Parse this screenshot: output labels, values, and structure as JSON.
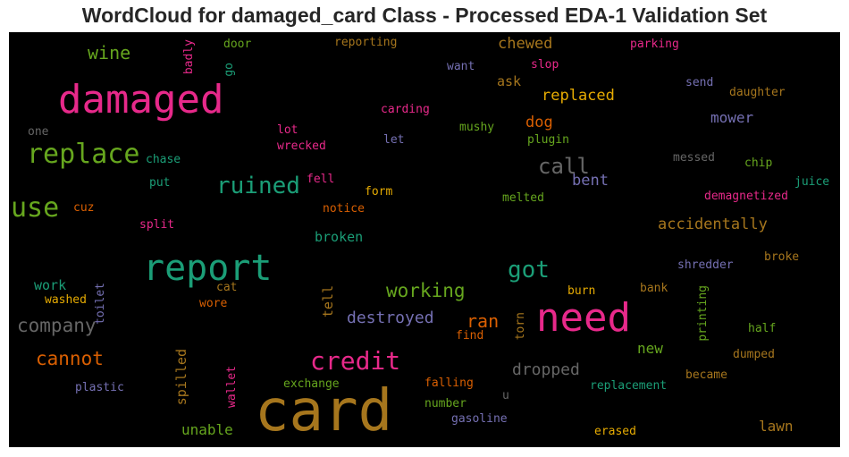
{
  "chart_data": {
    "type": "wordcloud",
    "title": "WordCloud for damaged_card Class - Processed EDA-1 Validation Set",
    "background": "#000000",
    "palette": "Dark2",
    "words": [
      {
        "text": "card",
        "size": 64,
        "color": "#a6761d",
        "rotated": false
      },
      {
        "text": "damaged",
        "size": 44,
        "color": "#e7298a",
        "rotated": false
      },
      {
        "text": "need",
        "size": 44,
        "color": "#e7298a",
        "rotated": false
      },
      {
        "text": "report",
        "size": 40,
        "color": "#1b9e77",
        "rotated": false
      },
      {
        "text": "replace",
        "size": 30,
        "color": "#66a61e",
        "rotated": false
      },
      {
        "text": "use",
        "size": 30,
        "color": "#66a61e",
        "rotated": false
      },
      {
        "text": "credit",
        "size": 28,
        "color": "#e7298a",
        "rotated": false
      },
      {
        "text": "ruined",
        "size": 26,
        "color": "#1b9e77",
        "rotated": false
      },
      {
        "text": "got",
        "size": 26,
        "color": "#1b9e77",
        "rotated": false
      },
      {
        "text": "call",
        "size": 24,
        "color": "#666666",
        "rotated": false
      },
      {
        "text": "company",
        "size": 21,
        "color": "#666666",
        "rotated": false
      },
      {
        "text": "cannot",
        "size": 21,
        "color": "#d95f02",
        "rotated": false
      },
      {
        "text": "working",
        "size": 21,
        "color": "#66a61e",
        "rotated": false
      },
      {
        "text": "wine",
        "size": 20,
        "color": "#66a61e",
        "rotated": false
      },
      {
        "text": "ran",
        "size": 20,
        "color": "#d95f02",
        "rotated": false
      },
      {
        "text": "destroyed",
        "size": 18,
        "color": "#7570b3",
        "rotated": false
      },
      {
        "text": "dropped",
        "size": 18,
        "color": "#666666",
        "rotated": false
      },
      {
        "text": "replaced",
        "size": 17,
        "color": "#e6ab02",
        "rotated": false
      },
      {
        "text": "accidentally",
        "size": 17,
        "color": "#a6761d",
        "rotated": false
      },
      {
        "text": "chewed",
        "size": 17,
        "color": "#a6761d",
        "rotated": false
      },
      {
        "text": "dog",
        "size": 17,
        "color": "#d95f02",
        "rotated": false
      },
      {
        "text": "bent",
        "size": 17,
        "color": "#7570b3",
        "rotated": false
      },
      {
        "text": "mower",
        "size": 16,
        "color": "#7570b3",
        "rotated": false
      },
      {
        "text": "lawn",
        "size": 16,
        "color": "#a6761d",
        "rotated": false
      },
      {
        "text": "new",
        "size": 16,
        "color": "#66a61e",
        "rotated": false
      },
      {
        "text": "unable",
        "size": 16,
        "color": "#66a61e",
        "rotated": false
      },
      {
        "text": "broken",
        "size": 15,
        "color": "#1b9e77",
        "rotated": false
      },
      {
        "text": "work",
        "size": 15,
        "color": "#1b9e77",
        "rotated": false
      },
      {
        "text": "ask",
        "size": 15,
        "color": "#a6761d",
        "rotated": false
      },
      {
        "text": "spilled",
        "size": 15,
        "color": "#a6761d",
        "rotated": true
      },
      {
        "text": "tell",
        "size": 15,
        "color": "#a6761d",
        "rotated": true
      },
      {
        "text": "shredder",
        "size": 13,
        "color": "#7570b3",
        "rotated": false
      },
      {
        "text": "replacement",
        "size": 13,
        "color": "#1b9e77",
        "rotated": false
      },
      {
        "text": "gasoline",
        "size": 13,
        "color": "#7570b3",
        "rotated": false
      },
      {
        "text": "exchange",
        "size": 13,
        "color": "#66a61e",
        "rotated": false
      },
      {
        "text": "plastic",
        "size": 13,
        "color": "#7570b3",
        "rotated": false
      },
      {
        "text": "demagnetized",
        "size": 13,
        "color": "#e7298a",
        "rotated": false
      },
      {
        "text": "juice",
        "size": 13,
        "color": "#1b9e77",
        "rotated": false
      },
      {
        "text": "messed",
        "size": 13,
        "color": "#666666",
        "rotated": false
      },
      {
        "text": "chip",
        "size": 13,
        "color": "#66a61e",
        "rotated": false
      },
      {
        "text": "daughter",
        "size": 13,
        "color": "#a6761d",
        "rotated": false
      },
      {
        "text": "send",
        "size": 13,
        "color": "#7570b3",
        "rotated": false
      },
      {
        "text": "parking",
        "size": 13,
        "color": "#e7298a",
        "rotated": false
      },
      {
        "text": "slop",
        "size": 13,
        "color": "#e7298a",
        "rotated": false
      },
      {
        "text": "want",
        "size": 13,
        "color": "#7570b3",
        "rotated": false
      },
      {
        "text": "reporting",
        "size": 13,
        "color": "#a6761d",
        "rotated": false
      },
      {
        "text": "door",
        "size": 13,
        "color": "#66a61e",
        "rotated": false
      },
      {
        "text": "carding",
        "size": 13,
        "color": "#e7298a",
        "rotated": false
      },
      {
        "text": "mushy",
        "size": 13,
        "color": "#66a61e",
        "rotated": false
      },
      {
        "text": "plugin",
        "size": 13,
        "color": "#66a61e",
        "rotated": false
      },
      {
        "text": "lot",
        "size": 13,
        "color": "#e7298a",
        "rotated": false
      },
      {
        "text": "wrecked",
        "size": 13,
        "color": "#e7298a",
        "rotated": false
      },
      {
        "text": "let",
        "size": 13,
        "color": "#7570b3",
        "rotated": false
      },
      {
        "text": "one",
        "size": 13,
        "color": "#666666",
        "rotated": false
      },
      {
        "text": "chase",
        "size": 13,
        "color": "#1b9e77",
        "rotated": false
      },
      {
        "text": "put",
        "size": 13,
        "color": "#1b9e77",
        "rotated": false
      },
      {
        "text": "fell",
        "size": 13,
        "color": "#e7298a",
        "rotated": false
      },
      {
        "text": "form",
        "size": 13,
        "color": "#e6ab02",
        "rotated": false
      },
      {
        "text": "notice",
        "size": 13,
        "color": "#d95f02",
        "rotated": false
      },
      {
        "text": "melted",
        "size": 13,
        "color": "#66a61e",
        "rotated": false
      },
      {
        "text": "cuz",
        "size": 13,
        "color": "#d95f02",
        "rotated": false
      },
      {
        "text": "split",
        "size": 13,
        "color": "#e7298a",
        "rotated": false
      },
      {
        "text": "broke",
        "size": 13,
        "color": "#a6761d",
        "rotated": false
      },
      {
        "text": "bank",
        "size": 13,
        "color": "#a6761d",
        "rotated": false
      },
      {
        "text": "burn",
        "size": 13,
        "color": "#e6ab02",
        "rotated": false
      },
      {
        "text": "cat",
        "size": 13,
        "color": "#a6761d",
        "rotated": false
      },
      {
        "text": "wore",
        "size": 13,
        "color": "#d95f02",
        "rotated": false
      },
      {
        "text": "washed",
        "size": 13,
        "color": "#e6ab02",
        "rotated": false
      },
      {
        "text": "half",
        "size": 13,
        "color": "#66a61e",
        "rotated": false
      },
      {
        "text": "find",
        "size": 13,
        "color": "#d95f02",
        "rotated": false
      },
      {
        "text": "dumped",
        "size": 13,
        "color": "#a6761d",
        "rotated": false
      },
      {
        "text": "became",
        "size": 13,
        "color": "#a6761d",
        "rotated": false
      },
      {
        "text": "falling",
        "size": 13,
        "color": "#d95f02",
        "rotated": false
      },
      {
        "text": "u",
        "size": 13,
        "color": "#666666",
        "rotated": false
      },
      {
        "text": "number",
        "size": 13,
        "color": "#66a61e",
        "rotated": false
      },
      {
        "text": "erased",
        "size": 13,
        "color": "#e6ab02",
        "rotated": false
      },
      {
        "text": "badly",
        "size": 13,
        "color": "#e7298a",
        "rotated": true
      },
      {
        "text": "go",
        "size": 13,
        "color": "#1b9e77",
        "rotated": true
      },
      {
        "text": "toilet",
        "size": 13,
        "color": "#7570b3",
        "rotated": true
      },
      {
        "text": "torn",
        "size": 13,
        "color": "#a6761d",
        "rotated": true
      },
      {
        "text": "printing",
        "size": 13,
        "color": "#66a61e",
        "rotated": true
      },
      {
        "text": "wallet",
        "size": 13,
        "color": "#e7298a",
        "rotated": true
      }
    ]
  }
}
